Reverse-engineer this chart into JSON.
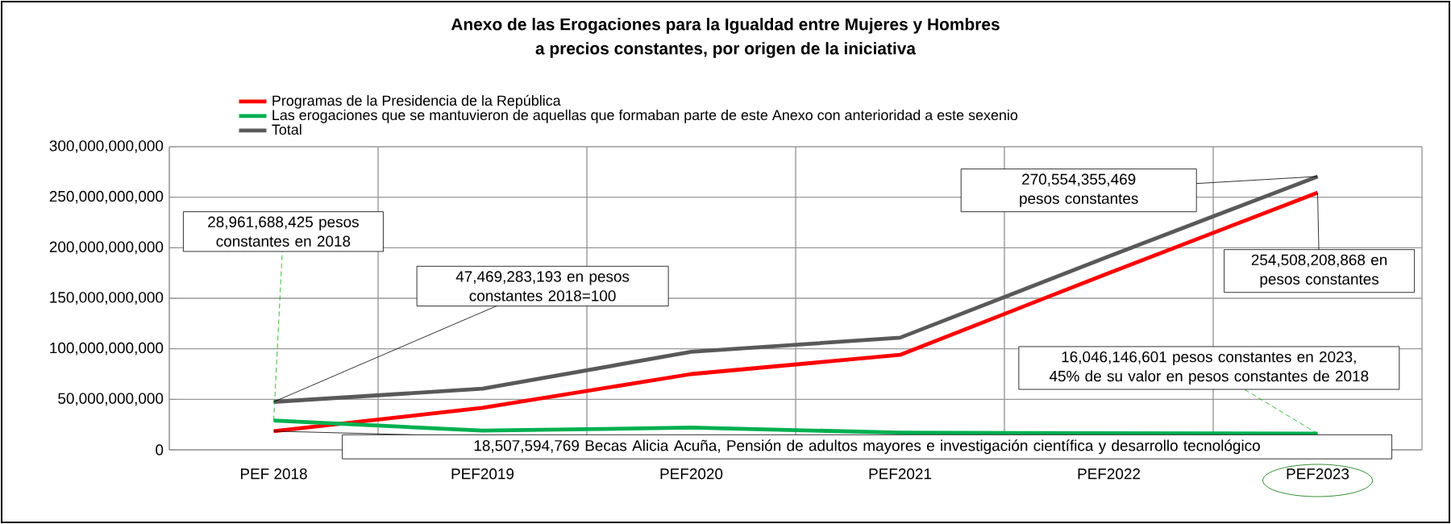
{
  "chart_data": {
    "type": "line",
    "title": "Anexo de las Erogaciones para la Igualdad entre Mujeres y Hombres",
    "subtitle": "a precios constantes, por origen de la iniciativa",
    "categories": [
      "PEF 2018",
      "PEF2019",
      "PEF2020",
      "PEF2021",
      "PEF2022",
      "PEF2023"
    ],
    "series": [
      {
        "name": "Programas de la Presidencia de la República",
        "color": "#ff0000",
        "values": [
          18507594769,
          41500000000,
          75000000000,
          94000000000,
          175000000000,
          254508208868
        ]
      },
      {
        "name": "Las erogaciones que se mantuvieron de aquellas que formaban parte de este Anexo con anterioridad a este sexenio",
        "color": "#00b050",
        "values": [
          28961688425,
          19000000000,
          22000000000,
          17000000000,
          16500000000,
          16046146601
        ]
      },
      {
        "name": "Total",
        "color": "#595959",
        "values": [
          47469283193,
          60500000000,
          97000000000,
          111000000000,
          191500000000,
          270554355469
        ]
      }
    ],
    "ylim": [
      0,
      300000000000
    ],
    "yticks": [
      {
        "value": 0,
        "label": "0"
      },
      {
        "value": 50000000000,
        "label": "50,000,000,000"
      },
      {
        "value": 100000000000,
        "label": "100,000,000,000"
      },
      {
        "value": 150000000000,
        "label": "150,000,000,000"
      },
      {
        "value": 200000000000,
        "label": "200,000,000,000"
      },
      {
        "value": 250000000000,
        "label": "250,000,000,000"
      },
      {
        "value": 300000000000,
        "label": "300,000,000,000"
      }
    ],
    "annotations": [
      {
        "text": "28,961,688,425 pesos constantes en 2018",
        "x": "PEF 2018",
        "y": 28961688425
      },
      {
        "text": "47,469,283,193 en pesos constantes 2018=100",
        "x": "PEF 2018",
        "y": 47469283193
      },
      {
        "text": "18,507,594,769 Becas Alicia Acuña, Pensión de adultos mayores e investigación científica y desarrollo tecnológico",
        "x": "PEF 2018",
        "y": 18507594769
      },
      {
        "text": "270,554,355,469 pesos constantes",
        "x": "PEF2023",
        "y": 270554355469
      },
      {
        "text": "254,508,208,868 en pesos constantes",
        "x": "PEF2023",
        "y": 254508208868
      },
      {
        "text": "16,046,146,601 pesos constantes en 2023, 45% de su valor en pesos constantes de 2018",
        "x": "PEF2023",
        "y": 16046146601
      }
    ],
    "grid": true,
    "legend": "top left",
    "marker": "none",
    "line_style": "solid"
  }
}
